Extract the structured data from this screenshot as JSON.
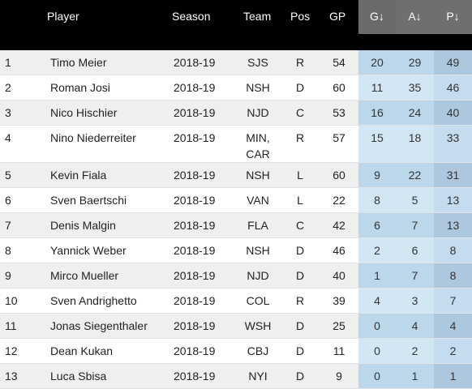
{
  "table": {
    "headers": {
      "player": "Player",
      "season": "Season",
      "team": "Team",
      "pos": "Pos",
      "gp": "GP",
      "g": "G↓",
      "a": "A↓",
      "p": "P↓"
    },
    "rows": [
      {
        "rank": "1",
        "player": "Timo Meier",
        "season": "2018-19",
        "team": [
          "SJS"
        ],
        "pos": "R",
        "gp": "54",
        "g": "20",
        "a": "29",
        "p": "49"
      },
      {
        "rank": "2",
        "player": "Roman Josi",
        "season": "2018-19",
        "team": [
          "NSH"
        ],
        "pos": "D",
        "gp": "60",
        "g": "11",
        "a": "35",
        "p": "46"
      },
      {
        "rank": "3",
        "player": "Nico Hischier",
        "season": "2018-19",
        "team": [
          "NJD"
        ],
        "pos": "C",
        "gp": "53",
        "g": "16",
        "a": "24",
        "p": "40"
      },
      {
        "rank": "4",
        "player": "Nino Niederreiter",
        "season": "2018-19",
        "team": [
          "MIN,",
          "CAR"
        ],
        "pos": "R",
        "gp": "57",
        "g": "15",
        "a": "18",
        "p": "33"
      },
      {
        "rank": "5",
        "player": "Kevin Fiala",
        "season": "2018-19",
        "team": [
          "NSH"
        ],
        "pos": "L",
        "gp": "60",
        "g": "9",
        "a": "22",
        "p": "31"
      },
      {
        "rank": "6",
        "player": "Sven Baertschi",
        "season": "2018-19",
        "team": [
          "VAN"
        ],
        "pos": "L",
        "gp": "22",
        "g": "8",
        "a": "5",
        "p": "13"
      },
      {
        "rank": "7",
        "player": "Denis Malgin",
        "season": "2018-19",
        "team": [
          "FLA"
        ],
        "pos": "C",
        "gp": "42",
        "g": "6",
        "a": "7",
        "p": "13"
      },
      {
        "rank": "8",
        "player": "Yannick Weber",
        "season": "2018-19",
        "team": [
          "NSH"
        ],
        "pos": "D",
        "gp": "46",
        "g": "2",
        "a": "6",
        "p": "8"
      },
      {
        "rank": "9",
        "player": "Mirco Mueller",
        "season": "2018-19",
        "team": [
          "NJD"
        ],
        "pos": "D",
        "gp": "40",
        "g": "1",
        "a": "7",
        "p": "8"
      },
      {
        "rank": "10",
        "player": "Sven Andrighetto",
        "season": "2018-19",
        "team": [
          "COL"
        ],
        "pos": "R",
        "gp": "39",
        "g": "4",
        "a": "3",
        "p": "7"
      },
      {
        "rank": "11",
        "player": "Jonas Siegenthaler",
        "season": "2018-19",
        "team": [
          "WSH"
        ],
        "pos": "D",
        "gp": "25",
        "g": "0",
        "a": "4",
        "p": "4"
      },
      {
        "rank": "12",
        "player": "Dean Kukan",
        "season": "2018-19",
        "team": [
          "CBJ"
        ],
        "pos": "D",
        "gp": "11",
        "g": "0",
        "a": "2",
        "p": "2"
      },
      {
        "rank": "13",
        "player": "Luca Sbisa",
        "season": "2018-19",
        "team": [
          "NYI"
        ],
        "pos": "D",
        "gp": "9",
        "g": "0",
        "a": "1",
        "p": "1"
      }
    ]
  }
}
